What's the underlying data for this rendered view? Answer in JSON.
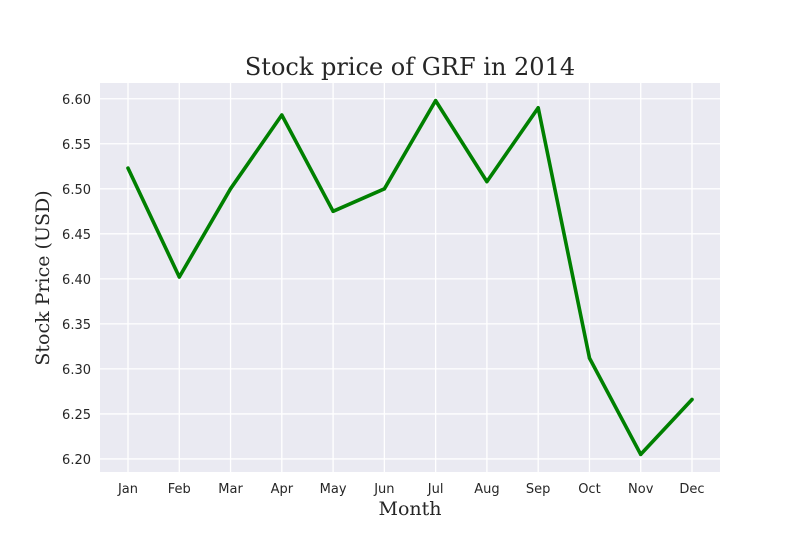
{
  "chart_data": {
    "type": "line",
    "title": "Stock price of GRF in 2014",
    "xlabel": "Month",
    "ylabel": "Stock Price (USD)",
    "categories": [
      "Jan",
      "Feb",
      "Mar",
      "Apr",
      "May",
      "Jun",
      "Jul",
      "Aug",
      "Sep",
      "Oct",
      "Nov",
      "Dec"
    ],
    "series": [
      {
        "values": [
          6.523,
          6.402,
          6.5,
          6.582,
          6.475,
          6.5,
          6.598,
          6.508,
          6.59,
          6.312,
          6.205,
          6.266
        ],
        "color": "#008000"
      }
    ],
    "yticks": [
      "6.20",
      "6.25",
      "6.30",
      "6.35",
      "6.40",
      "6.45",
      "6.50",
      "6.55",
      "6.60"
    ],
    "ylim": [
      6.1855,
      6.6175
    ],
    "grid": true,
    "legend": "none",
    "colors": {
      "plot_background": "#eaeaf2",
      "grid": "#ffffff",
      "text": "#262626"
    }
  }
}
